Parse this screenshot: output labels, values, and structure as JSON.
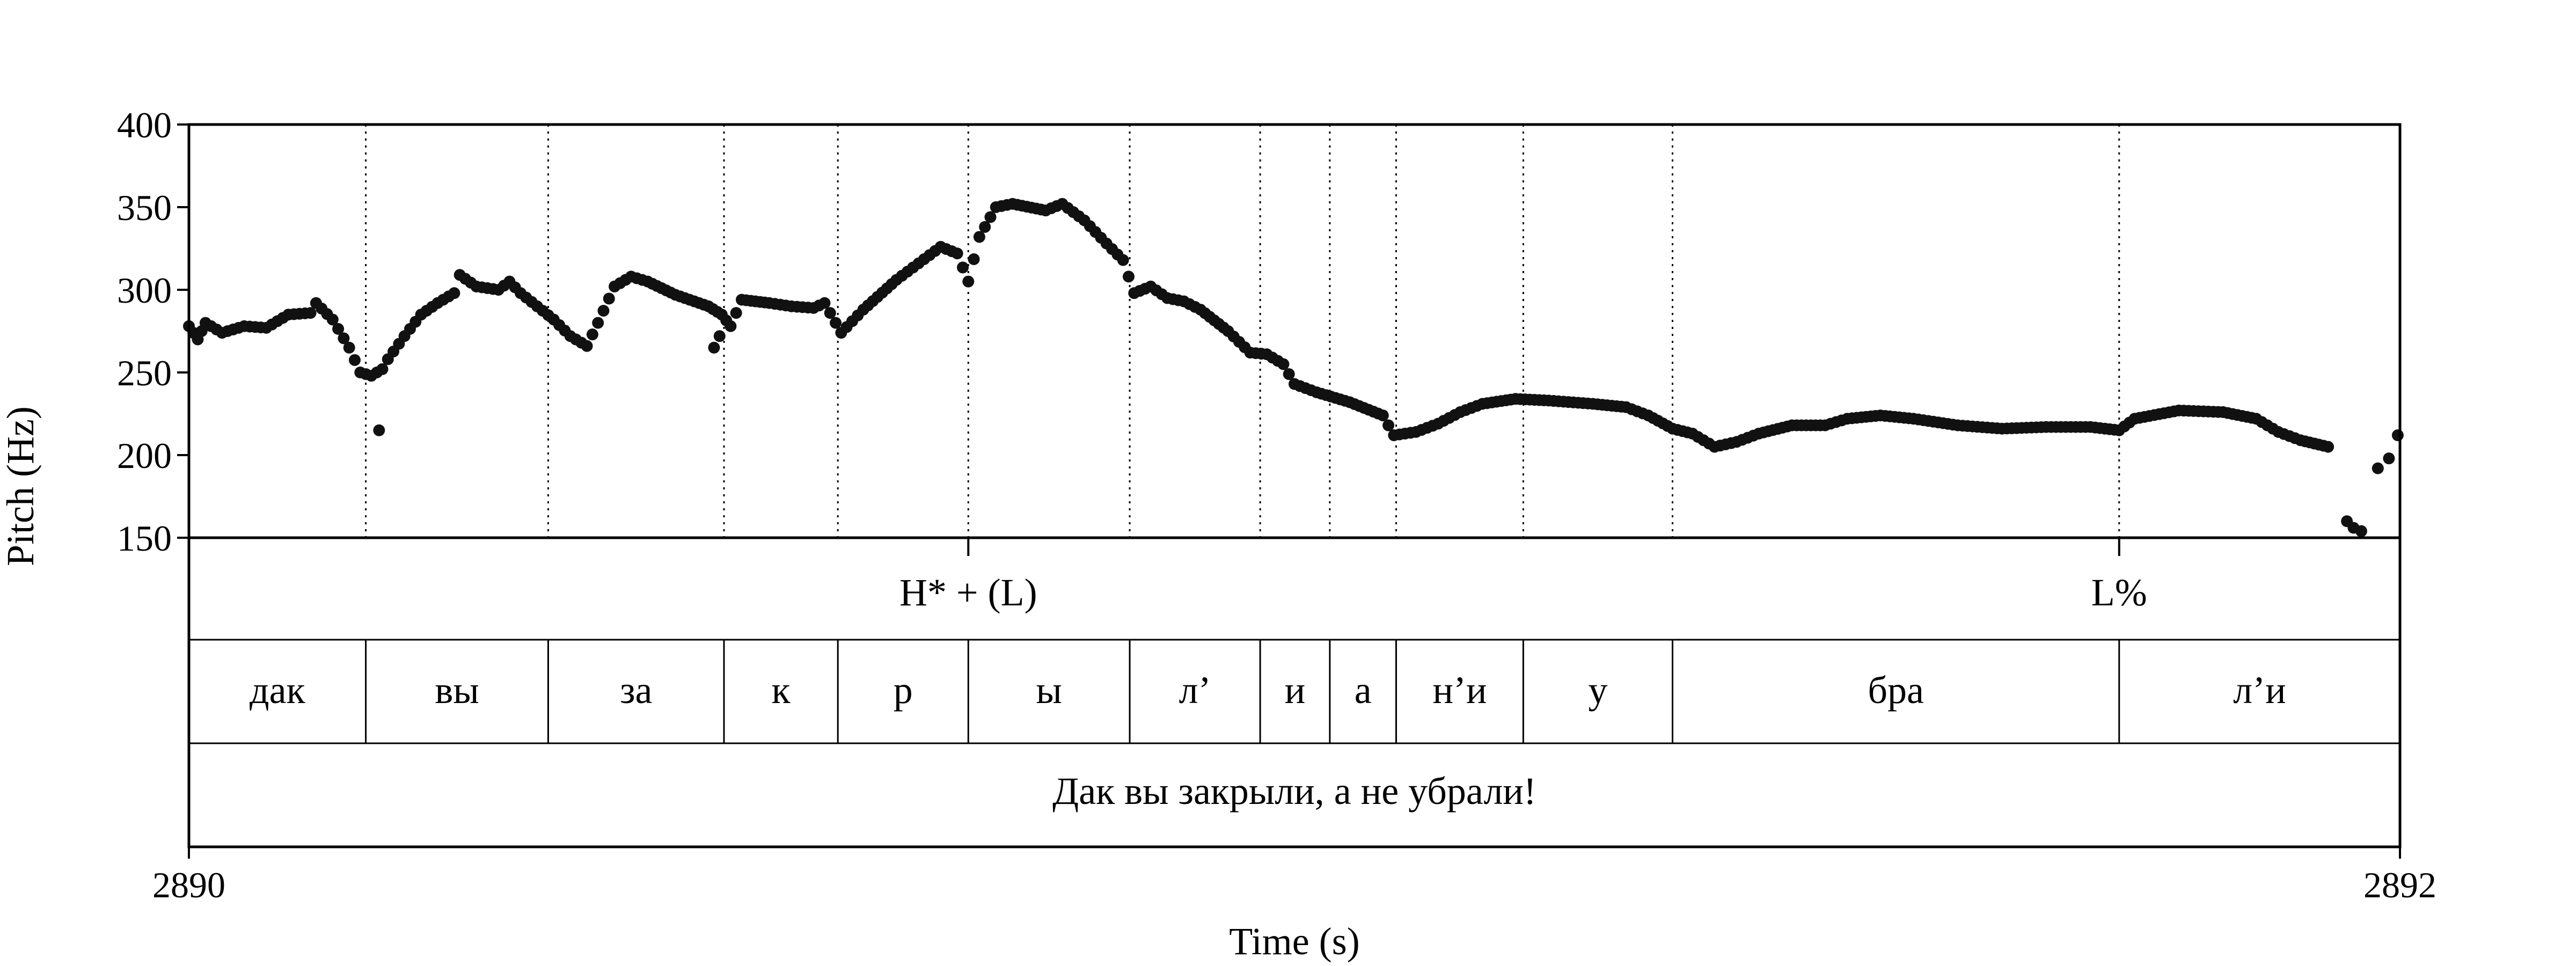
{
  "chart_data": {
    "type": "scatter",
    "xlabel": "Time (s)",
    "ylabel": "Pitch (Hz)",
    "xlim": [
      2890,
      2892
    ],
    "ylim": [
      150,
      400
    ],
    "y_ticks": [
      "400",
      "350",
      "300",
      "250",
      "200",
      "150"
    ],
    "x_ticks": [
      "2890",
      "2892"
    ],
    "grid": false,
    "color": "#111111",
    "boundaries": [
      2890.16,
      2890.325,
      2890.484,
      2890.587,
      2890.705,
      2890.851,
      2890.969,
      2891.032,
      2891.092,
      2891.207,
      2891.342,
      2891.746
    ],
    "tones": [
      {
        "label": "H* + (L)",
        "x": 2890.705
      },
      {
        "label": "L%",
        "x": 2891.746
      }
    ],
    "syllables": [
      {
        "label": "дак",
        "start": 2890,
        "end": 2890.16
      },
      {
        "label": "вы",
        "start": 2890.16,
        "end": 2890.325
      },
      {
        "label": "за",
        "start": 2890.325,
        "end": 2890.484
      },
      {
        "label": "к",
        "start": 2890.484,
        "end": 2890.587
      },
      {
        "label": "р",
        "start": 2890.587,
        "end": 2890.705
      },
      {
        "label": "ы",
        "start": 2890.705,
        "end": 2890.851
      },
      {
        "label": "л’",
        "start": 2890.851,
        "end": 2890.969
      },
      {
        "label": "и",
        "start": 2890.969,
        "end": 2891.032
      },
      {
        "label": "а",
        "start": 2891.032,
        "end": 2891.092
      },
      {
        "label": "н’и",
        "start": 2891.092,
        "end": 2891.207
      },
      {
        "label": "у",
        "start": 2891.207,
        "end": 2891.342
      },
      {
        "label": "бра",
        "start": 2891.342,
        "end": 2891.746
      },
      {
        "label": "л’и",
        "start": 2891.746,
        "end": 2892
      }
    ],
    "sentence": "Дак вы закрыли, а не убрали!",
    "pitch_anchors": [
      [
        2890.0,
        278
      ],
      [
        2890.008,
        270
      ],
      [
        2890.015,
        280
      ],
      [
        2890.03,
        274
      ],
      [
        2890.05,
        278
      ],
      [
        2890.07,
        277
      ],
      [
        2890.09,
        285
      ],
      [
        2890.11,
        286
      ],
      [
        2890.115,
        292
      ],
      [
        2890.13,
        282
      ],
      [
        2890.145,
        265
      ],
      [
        2890.155,
        250
      ],
      [
        2890.165,
        248
      ],
      [
        2890.175,
        252
      ],
      [
        2890.18,
        258
      ],
      [
        2890.195,
        272
      ],
      [
        2890.21,
        285
      ],
      [
        2890.225,
        292
      ],
      [
        2890.24,
        298
      ],
      [
        2890.245,
        309
      ],
      [
        2890.26,
        302
      ],
      [
        2890.28,
        300
      ],
      [
        2890.29,
        305
      ],
      [
        2890.3,
        298
      ],
      [
        2890.315,
        290
      ],
      [
        2890.33,
        282
      ],
      [
        2890.345,
        272
      ],
      [
        2890.36,
        266
      ],
      [
        2890.37,
        280
      ],
      [
        2890.385,
        302
      ],
      [
        2890.4,
        308
      ],
      [
        2890.415,
        305
      ],
      [
        2890.44,
        297
      ],
      [
        2890.47,
        290
      ],
      [
        2890.482,
        285
      ],
      [
        2890.49,
        278
      ],
      [
        2890.5,
        294
      ],
      [
        2890.525,
        292
      ],
      [
        2890.545,
        290
      ],
      [
        2890.565,
        289
      ],
      [
        2890.575,
        292
      ],
      [
        2890.59,
        274
      ],
      [
        2890.61,
        288
      ],
      [
        2890.64,
        306
      ],
      [
        2890.66,
        316
      ],
      [
        2890.68,
        326
      ],
      [
        2890.695,
        322
      ],
      [
        2890.705,
        305
      ],
      [
        2890.715,
        332
      ],
      [
        2890.73,
        350
      ],
      [
        2890.745,
        352
      ],
      [
        2890.775,
        348
      ],
      [
        2890.79,
        352
      ],
      [
        2890.81,
        342
      ],
      [
        2890.83,
        328
      ],
      [
        2890.845,
        318
      ],
      [
        2890.855,
        298
      ],
      [
        2890.87,
        302
      ],
      [
        2890.885,
        295
      ],
      [
        2890.9,
        293
      ],
      [
        2890.915,
        288
      ],
      [
        2890.94,
        275
      ],
      [
        2890.96,
        262
      ],
      [
        2890.975,
        261
      ],
      [
        2890.99,
        255
      ],
      [
        2891.0,
        243
      ],
      [
        2891.02,
        238
      ],
      [
        2891.05,
        232
      ],
      [
        2891.08,
        224
      ],
      [
        2891.09,
        212
      ],
      [
        2891.11,
        214
      ],
      [
        2891.13,
        219
      ],
      [
        2891.15,
        226
      ],
      [
        2891.17,
        231
      ],
      [
        2891.2,
        234
      ],
      [
        2891.23,
        233
      ],
      [
        2891.27,
        231
      ],
      [
        2891.3,
        229
      ],
      [
        2891.32,
        224
      ],
      [
        2891.342,
        216
      ],
      [
        2891.36,
        213
      ],
      [
        2891.38,
        205
      ],
      [
        2891.4,
        208
      ],
      [
        2891.42,
        213
      ],
      [
        2891.45,
        218
      ],
      [
        2891.48,
        218
      ],
      [
        2891.5,
        222
      ],
      [
        2891.53,
        224
      ],
      [
        2891.56,
        222
      ],
      [
        2891.6,
        218
      ],
      [
        2891.64,
        216
      ],
      [
        2891.68,
        217
      ],
      [
        2891.72,
        217
      ],
      [
        2891.746,
        215
      ],
      [
        2891.76,
        222
      ],
      [
        2891.8,
        227
      ],
      [
        2891.84,
        226
      ],
      [
        2891.87,
        222
      ],
      [
        2891.89,
        214
      ],
      [
        2891.91,
        209
      ],
      [
        2891.935,
        205
      ]
    ],
    "pitch_outliers": [
      [
        2890.172,
        215
      ],
      [
        2890.475,
        265
      ],
      [
        2890.48,
        272
      ],
      [
        2891.952,
        160
      ],
      [
        2891.958,
        156
      ],
      [
        2891.965,
        154
      ],
      [
        2891.98,
        192
      ],
      [
        2891.99,
        198
      ],
      [
        2891.998,
        212
      ]
    ]
  }
}
